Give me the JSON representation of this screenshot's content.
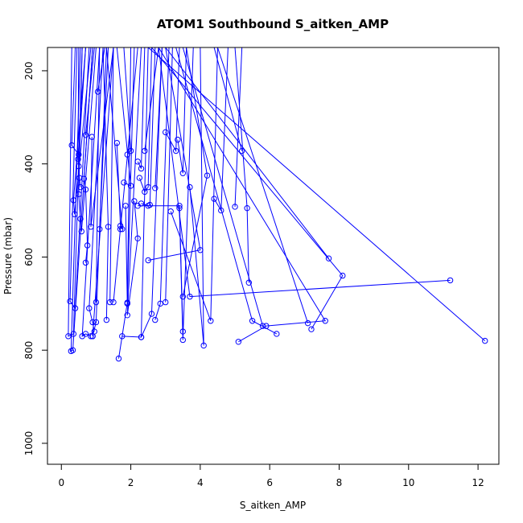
{
  "chart_data": {
    "type": "line",
    "title": "ATOM1 Southbound S_aitken_AMP",
    "xlabel": "S_aitken_AMP",
    "ylabel": "Pressure (mbar)",
    "xlim": [
      -0.4,
      12.6
    ],
    "ylim": [
      1045,
      150
    ],
    "y_reversed": true,
    "x_ticks": [
      0,
      2,
      4,
      6,
      8,
      10,
      12
    ],
    "x_tick_labels": [
      "0",
      "2",
      "4",
      "6",
      "8",
      "10",
      "12"
    ],
    "y_ticks": [
      200,
      400,
      600,
      800,
      1000
    ],
    "y_tick_labels": [
      "200",
      "400",
      "600",
      "800",
      "1000"
    ],
    "grid": false,
    "legend": "none",
    "color": "#0000ff",
    "series": [
      {
        "points": [
          [
            0.3,
            150
          ],
          [
            0.2,
            770
          ],
          [
            0.35,
            765
          ],
          [
            0.6,
            150
          ]
        ]
      },
      {
        "points": [
          [
            0.45,
            150
          ],
          [
            0.25,
            695
          ],
          [
            0.4,
            710
          ],
          [
            0.8,
            150
          ]
        ]
      },
      {
        "points": [
          [
            0.55,
            150
          ],
          [
            0.28,
            802
          ],
          [
            0.33,
            800
          ],
          [
            0.9,
            150
          ]
        ]
      },
      {
        "points": [
          [
            0.4,
            150
          ],
          [
            0.3,
            360
          ],
          [
            0.5,
            380
          ],
          [
            0.7,
            150
          ]
        ]
      },
      {
        "points": [
          [
            0.7,
            150
          ],
          [
            0.35,
            478
          ],
          [
            0.38,
            508
          ],
          [
            0.85,
            150
          ]
        ]
      },
      {
        "points": [
          [
            0.5,
            150
          ],
          [
            0.48,
            390
          ],
          [
            0.5,
            405
          ],
          [
            0.52,
            430
          ],
          [
            0.55,
            450
          ]
        ]
      },
      {
        "points": [
          [
            0.6,
            150
          ],
          [
            0.5,
            465
          ],
          [
            0.55,
            518
          ],
          [
            0.58,
            545
          ],
          [
            1.0,
            150
          ]
        ]
      },
      {
        "points": [
          [
            0.9,
            150
          ],
          [
            0.65,
            432
          ],
          [
            0.7,
            455
          ],
          [
            0.75,
            575
          ],
          [
            0.7,
            612
          ]
        ]
      },
      {
        "points": [
          [
            1.1,
            150
          ],
          [
            0.6,
            770
          ],
          [
            0.7,
            765
          ],
          [
            0.85,
            770
          ]
        ]
      },
      {
        "points": [
          [
            1.2,
            150
          ],
          [
            0.8,
            710
          ],
          [
            0.9,
            740
          ],
          [
            0.95,
            760
          ]
        ]
      },
      {
        "points": [
          [
            1.3,
            150
          ],
          [
            1.0,
            740
          ],
          [
            0.9,
            770
          ]
        ]
      },
      {
        "points": [
          [
            1.5,
            150
          ],
          [
            0.85,
            535
          ],
          [
            0.88,
            342
          ]
        ]
      },
      {
        "points": [
          [
            0.7,
            338
          ],
          [
            0.95,
            150
          ]
        ]
      },
      {
        "points": [
          [
            1.05,
            245
          ],
          [
            1.25,
            150
          ]
        ]
      },
      {
        "points": [
          [
            1.0,
            697
          ],
          [
            1.1,
            150
          ]
        ]
      },
      {
        "points": [
          [
            1.3,
            735
          ],
          [
            1.35,
            535
          ],
          [
            1.2,
            150
          ]
        ]
      },
      {
        "points": [
          [
            1.4,
            697
          ],
          [
            1.5,
            150
          ]
        ]
      },
      {
        "points": [
          [
            1.6,
            355
          ],
          [
            1.7,
            533
          ],
          [
            1.75,
            540
          ],
          [
            1.3,
            150
          ]
        ]
      },
      {
        "points": [
          [
            1.8,
            440
          ],
          [
            2.0,
            447
          ],
          [
            1.6,
            150
          ]
        ]
      },
      {
        "points": [
          [
            1.9,
            380
          ],
          [
            2.0,
            372
          ],
          [
            1.8,
            150
          ]
        ]
      },
      {
        "points": [
          [
            1.85,
            490
          ],
          [
            1.9,
            700
          ],
          [
            2.0,
            150
          ]
        ]
      },
      {
        "points": [
          [
            1.65,
            818
          ],
          [
            1.9,
            698
          ],
          [
            2.1,
            150
          ]
        ]
      },
      {
        "points": [
          [
            1.75,
            770
          ],
          [
            2.3,
            772
          ],
          [
            2.5,
            150
          ]
        ]
      },
      {
        "points": [
          [
            1.5,
            697
          ],
          [
            1.7,
            540
          ],
          [
            2.2,
            150
          ]
        ]
      },
      {
        "points": [
          [
            2.1,
            480
          ],
          [
            2.2,
            560
          ],
          [
            1.9,
            725
          ],
          [
            2.3,
            150
          ]
        ]
      },
      {
        "points": [
          [
            2.2,
            395
          ],
          [
            2.3,
            410
          ],
          [
            2.4,
            150
          ]
        ]
      },
      {
        "points": [
          [
            2.25,
            430
          ],
          [
            2.4,
            460
          ],
          [
            2.5,
            450
          ],
          [
            2.6,
            150
          ]
        ]
      },
      {
        "points": [
          [
            2.3,
            485
          ],
          [
            2.5,
            490
          ],
          [
            2.55,
            488
          ],
          [
            2.7,
            150
          ]
        ]
      },
      {
        "points": [
          [
            2.4,
            372
          ],
          [
            2.8,
            150
          ]
        ]
      },
      {
        "points": [
          [
            2.7,
            452
          ],
          [
            2.9,
            150
          ]
        ]
      },
      {
        "points": [
          [
            2.5,
            607
          ],
          [
            4.0,
            585
          ],
          [
            3.0,
            150
          ]
        ]
      },
      {
        "points": [
          [
            2.7,
            735
          ],
          [
            2.85,
            700
          ],
          [
            3.1,
            150
          ]
        ]
      },
      {
        "points": [
          [
            3.0,
            697
          ],
          [
            3.2,
            150
          ]
        ]
      },
      {
        "points": [
          [
            3.0,
            332
          ],
          [
            3.3,
            372
          ],
          [
            3.4,
            150
          ]
        ]
      },
      {
        "points": [
          [
            3.35,
            348
          ],
          [
            3.5,
            420
          ],
          [
            3.6,
            150
          ]
        ]
      },
      {
        "points": [
          [
            3.4,
            495
          ],
          [
            3.5,
            778
          ],
          [
            3.8,
            150
          ]
        ]
      },
      {
        "points": [
          [
            3.5,
            685
          ],
          [
            4.2,
            425
          ],
          [
            3.6,
            150
          ]
        ]
      },
      {
        "points": [
          [
            3.7,
            450
          ],
          [
            4.1,
            790
          ],
          [
            4.0,
            150
          ]
        ]
      },
      {
        "points": [
          [
            3.15,
            502
          ],
          [
            4.3,
            737
          ],
          [
            4.5,
            150
          ]
        ]
      },
      {
        "points": [
          [
            4.4,
            475
          ],
          [
            4.6,
            500
          ],
          [
            4.8,
            150
          ]
        ]
      },
      {
        "points": [
          [
            5.2,
            372
          ],
          [
            4.4,
            150
          ]
        ]
      },
      {
        "points": [
          [
            5.0,
            492
          ],
          [
            5.2,
            150
          ]
        ]
      },
      {
        "points": [
          [
            5.4,
            655
          ],
          [
            5.35,
            495
          ],
          [
            5.0,
            150
          ]
        ]
      },
      {
        "points": [
          [
            5.8,
            748
          ],
          [
            3.5,
            150
          ]
        ]
      },
      {
        "points": [
          [
            6.2,
            765
          ],
          [
            5.5,
            737
          ],
          [
            3.3,
            150
          ]
        ]
      },
      {
        "points": [
          [
            5.1,
            782
          ],
          [
            5.9,
            748
          ],
          [
            7.6,
            737
          ],
          [
            2.8,
            150
          ]
        ]
      },
      {
        "points": [
          [
            7.1,
            742
          ],
          [
            4.5,
            150
          ]
        ]
      },
      {
        "points": [
          [
            7.2,
            755
          ],
          [
            8.1,
            640
          ],
          [
            2.6,
            150
          ]
        ]
      },
      {
        "points": [
          [
            7.7,
            603
          ],
          [
            3.0,
            150
          ]
        ]
      },
      {
        "points": [
          [
            11.2,
            650
          ],
          [
            3.7,
            685
          ],
          [
            2.8,
            150
          ]
        ]
      },
      {
        "points": [
          [
            12.2,
            780
          ],
          [
            2.5,
            150
          ]
        ]
      },
      {
        "points": [
          [
            2.2,
            490
          ],
          [
            3.4,
            490
          ],
          [
            3.5,
            760
          ]
        ]
      },
      {
        "points": [
          [
            2.3,
            772
          ],
          [
            2.6,
            722
          ],
          [
            2.9,
            150
          ]
        ]
      },
      {
        "points": [
          [
            1.1,
            540
          ],
          [
            1.35,
            150
          ]
        ]
      },
      {
        "points": [
          [
            0.9,
            770
          ],
          [
            1.5,
            150
          ]
        ]
      }
    ]
  }
}
